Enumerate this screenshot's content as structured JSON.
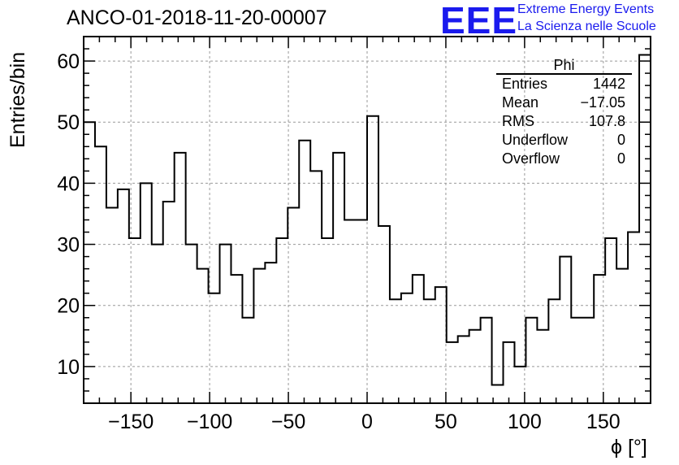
{
  "title": "ANCO-01-2018-11-20-00007",
  "logo": {
    "mark": "EEE",
    "line1": "Extreme Energy Events",
    "line2": "La Scienza nelle Scuole",
    "color": "#1a1aee"
  },
  "stats": {
    "name": "Phi",
    "rows": [
      {
        "label": "Entries",
        "value": "1442"
      },
      {
        "label": "Mean",
        "value": "−17.05"
      },
      {
        "label": "RMS",
        "value": "107.8"
      },
      {
        "label": "Underflow",
        "value": "0"
      },
      {
        "label": "Overflow",
        "value": "0"
      }
    ]
  },
  "chart_data": {
    "type": "bar",
    "style": "step-histogram",
    "title": "ANCO-01-2018-11-20-00007",
    "xlabel": "ϕ [°]",
    "ylabel": "Entries/bin",
    "xlim": [
      -180,
      180
    ],
    "ylim": [
      4,
      64
    ],
    "bin_width": 7.2,
    "values": [
      50,
      46,
      36,
      39,
      31,
      40,
      30,
      37,
      45,
      30,
      26,
      22,
      30,
      25,
      18,
      26,
      27,
      31,
      36,
      47,
      42,
      31,
      45,
      34,
      34,
      51,
      33,
      21,
      22,
      25,
      21,
      23,
      14,
      15,
      16,
      18,
      7,
      14,
      10,
      18,
      16,
      21,
      28,
      18,
      18,
      25,
      31,
      26,
      32,
      61
    ],
    "xticks": [
      -150,
      -100,
      -50,
      0,
      50,
      100,
      150
    ],
    "xtick_labels": [
      "−150",
      "−100",
      "−50",
      "0",
      "50",
      "100",
      "150"
    ],
    "yticks": [
      10,
      20,
      30,
      40,
      50,
      60
    ],
    "ytick_labels": [
      "10",
      "20",
      "30",
      "40",
      "50",
      "60"
    ],
    "grid": true,
    "legend": "none"
  }
}
